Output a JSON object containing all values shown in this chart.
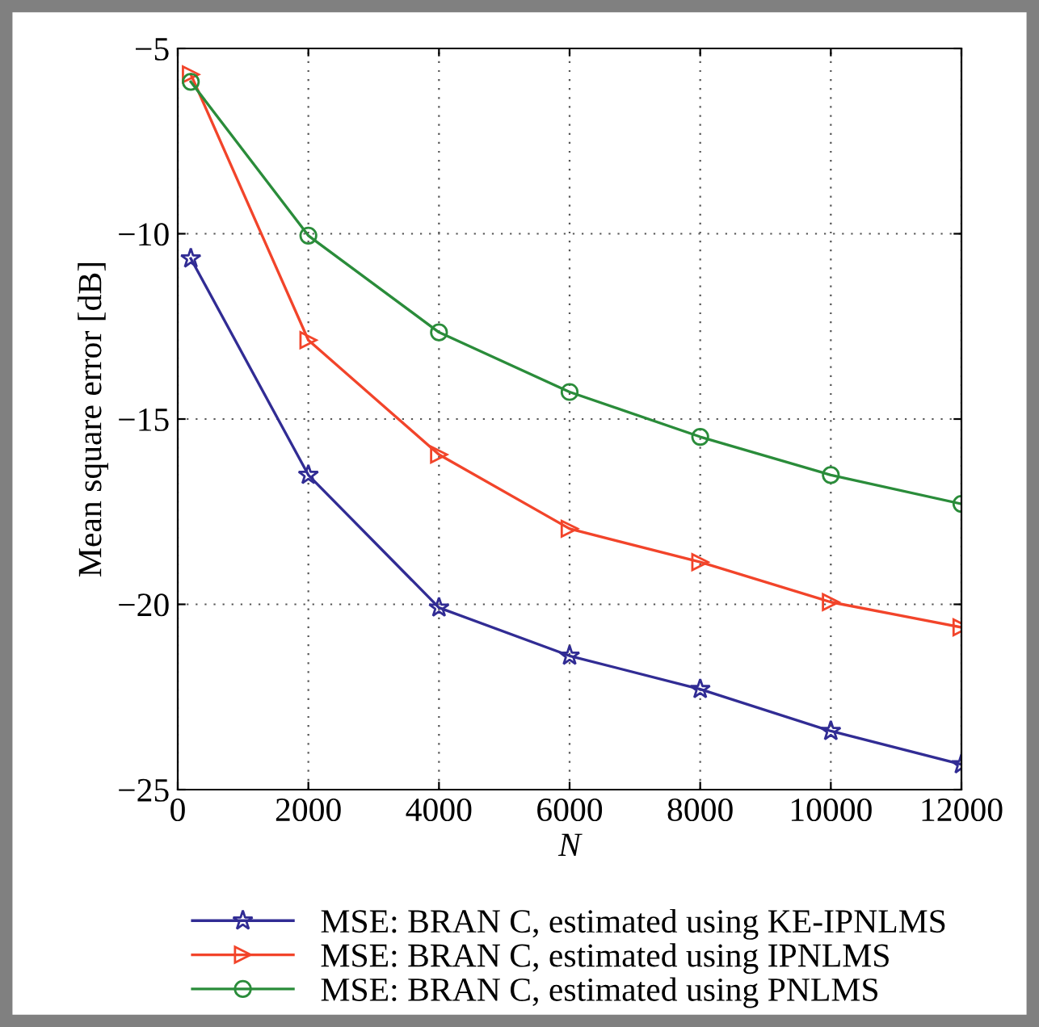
{
  "chart_data": {
    "type": "line",
    "xlabel": "N",
    "ylabel": "Mean square error [dB]",
    "x": [
      200,
      2000,
      4000,
      6000,
      8000,
      10000,
      12000
    ],
    "series": [
      {
        "name": "MSE: BRAN C, estimated using KE-IPNLMS",
        "color": "#312c94",
        "marker": "star",
        "values": [
          -10.67,
          -16.51,
          -20.09,
          -21.39,
          -22.29,
          -23.42,
          -24.32
        ]
      },
      {
        "name": "MSE: BRAN C, estimated using IPNLMS",
        "color": "#f2442a",
        "marker": "triangle",
        "values": [
          -5.7,
          -12.87,
          -15.96,
          -17.96,
          -18.86,
          -19.94,
          -20.62
        ]
      },
      {
        "name": "MSE: BRAN C, estimated using PNLMS",
        "color": "#2a8c3a",
        "marker": "circle",
        "values": [
          -5.9,
          -10.05,
          -12.66,
          -14.27,
          -15.48,
          -16.51,
          -17.29
        ]
      }
    ],
    "xlim": [
      0,
      12000
    ],
    "xticks": [
      0,
      2000,
      4000,
      6000,
      8000,
      10000,
      12000
    ],
    "ylim": [
      -25,
      -5
    ],
    "yticks": [
      -25,
      -20,
      -15,
      -10,
      -5
    ],
    "grid": true,
    "line_style": "solid",
    "legend": "bottom"
  }
}
